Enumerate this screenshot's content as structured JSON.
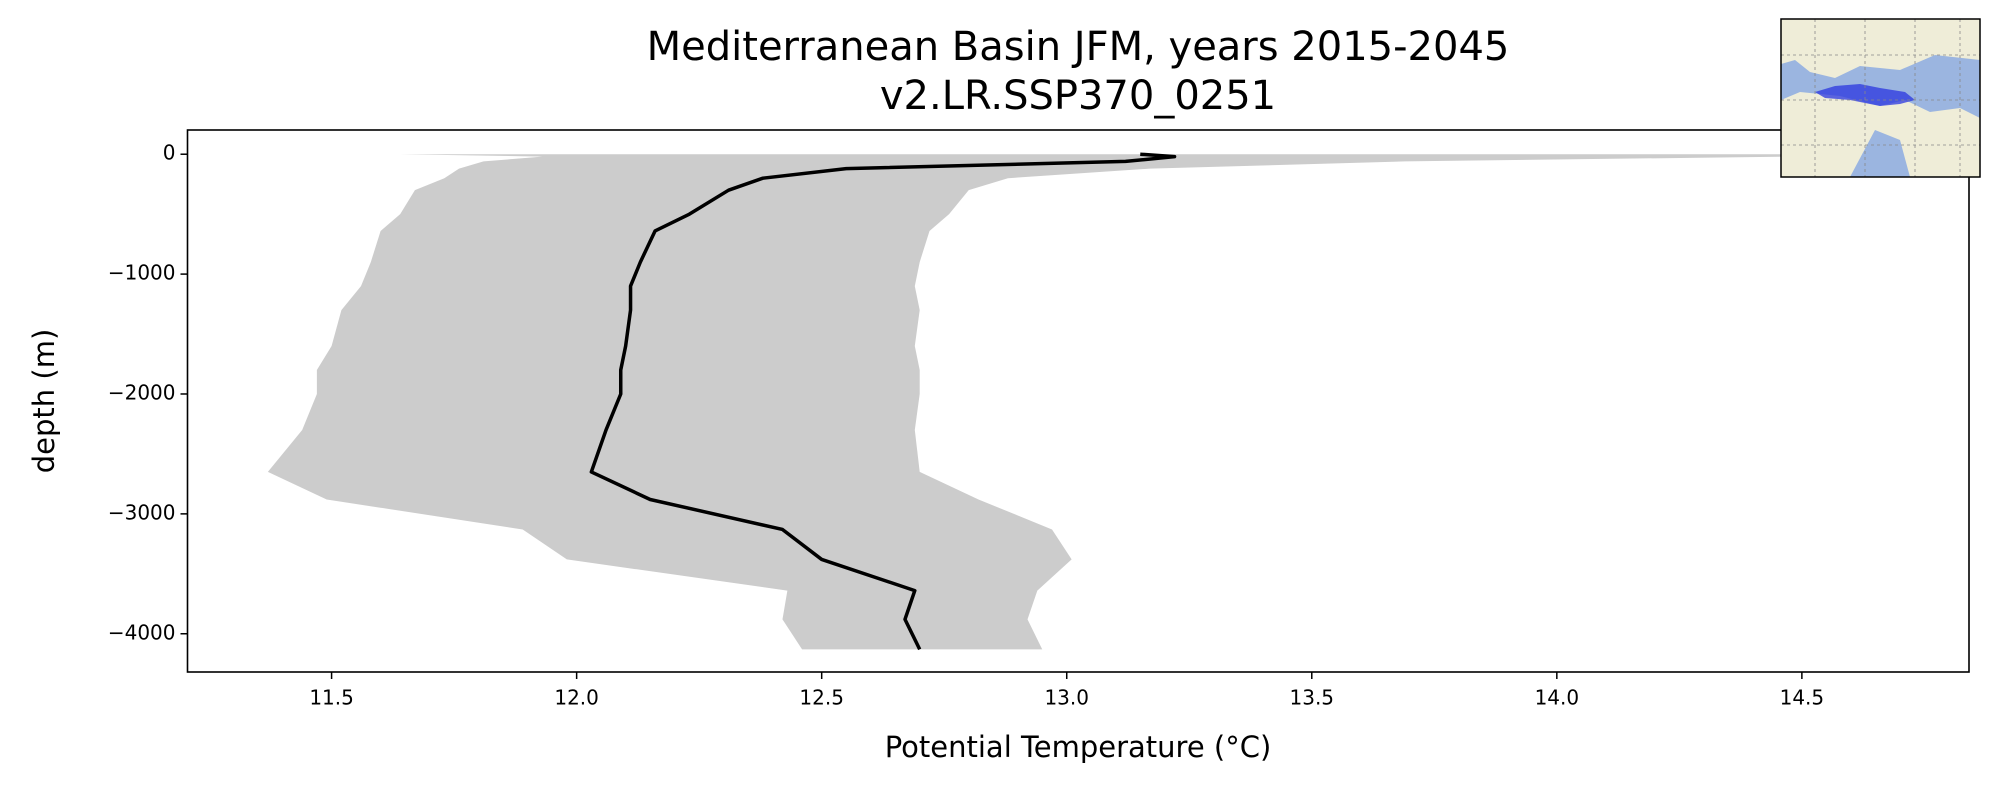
{
  "chart_data": {
    "type": "profile",
    "title": "Mediterranean Basin JFM, years 2015-2045",
    "subtitle": "v2.LR.SSP370_0251",
    "xlabel": "Potential Temperature (°C)",
    "ylabel": "depth (m)",
    "xlim": [
      11.206,
      14.841
    ],
    "ylim": [
      -4319,
      202
    ],
    "xticks": [
      11.5,
      {
        "value": 12,
        "label": "12.0"
      },
      12.5,
      {
        "value": 13,
        "label": "13.0"
      },
      13.5,
      {
        "value": 14,
        "label": "14.0"
      },
      14.5
    ],
    "yticks": [
      0,
      {
        "value": -1000,
        "label": "−1000"
      },
      {
        "value": -2000,
        "label": "−2000"
      },
      {
        "value": -3000,
        "label": "−3000"
      },
      {
        "value": -4000,
        "label": "−4000"
      }
    ],
    "y": [
      0,
      -20,
      -60,
      -120,
      -200,
      -300,
      -500,
      -640,
      -900,
      -1100,
      -1300,
      -1600,
      -1800,
      -2000,
      -2300,
      -2650,
      -2880,
      -3130,
      -3380,
      -3640,
      -3880,
      -4130
    ],
    "mean": {
      "color": "#000000",
      "values": [
        13.15,
        13.22,
        13.12,
        12.55,
        12.38,
        12.31,
        12.23,
        12.16,
        12.13,
        12.11,
        12.11,
        12.1,
        12.09,
        12.09,
        12.06,
        12.03,
        12.15,
        12.42,
        12.5,
        12.69,
        12.67,
        12.7
      ]
    },
    "range": {
      "color": "#cccccc",
      "min": [
        11.64,
        11.93,
        11.81,
        11.76,
        11.73,
        11.67,
        11.64,
        11.6,
        11.58,
        11.56,
        11.52,
        11.5,
        11.47,
        11.47,
        11.44,
        11.37,
        11.49,
        11.89,
        11.98,
        12.43,
        12.42,
        12.46
      ],
      "max": [
        14.83,
        14.47,
        13.69,
        13.17,
        12.88,
        12.8,
        12.76,
        12.72,
        12.7,
        12.69,
        12.7,
        12.69,
        12.7,
        12.7,
        12.69,
        12.7,
        12.82,
        12.97,
        13.01,
        12.94,
        12.92,
        12.95
      ]
    }
  }
}
